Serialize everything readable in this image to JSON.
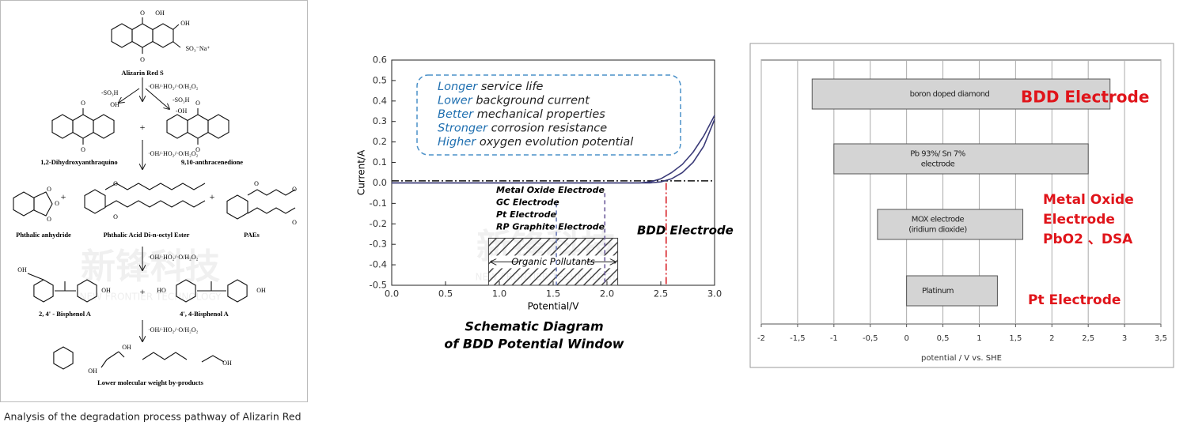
{
  "pathway": {
    "caption": "Analysis of the degradation process pathway of Alizarin Red",
    "watermark": {
      "name": "新锋科技",
      "tagline": "NEW FRONTIER TECHNOLOGY"
    },
    "steps": [
      "·OH/·HO₂/·O/H₂O₂",
      "·OH/·HO₂/·O/H₂O₂",
      "·OH/·HO₂/·O/H₂O₂",
      "·OH/·HO₂/·O/H₂O₂"
    ],
    "branch_labels": [
      "-SO₃H",
      "-SO₃H",
      "-OH"
    ],
    "compounds": [
      "Alizarin Red S",
      "1,2-Dihydroxyanthraquino",
      "9,10-anthracenedione",
      "Phthalic anhydride",
      "Phthalic Acid Di-n-octyl Ester",
      "PAEs",
      "2, 4' - Bisphenol A",
      "4', 4-Bisphenol A",
      "Lower molecular weight by-products"
    ],
    "atom_labels": [
      "O",
      "OH",
      "OH",
      "O",
      "SO₃⁻Na⁺",
      "O",
      "OH",
      "O",
      "O",
      "O",
      "O",
      "O",
      "O",
      "O",
      "O",
      "O",
      "O",
      "O",
      "OH",
      "OH",
      "HO",
      "OH",
      "OH",
      "OH",
      "OH"
    ]
  },
  "chart_data": [
    {
      "type": "line",
      "xlabel": "Potential/V",
      "ylabel": "Current/A",
      "xlim": [
        0,
        3
      ],
      "xticks": [
        {
          "value": 0,
          "label": "0.0"
        },
        0.5,
        {
          "value": 1,
          "label": "1.0"
        },
        1.5,
        {
          "value": 2,
          "label": "2.0"
        },
        2.5,
        {
          "value": 3,
          "label": "3.0"
        }
      ],
      "ylim": [
        -0.5,
        0.6
      ],
      "yticks": [
        -0.5,
        -0.4,
        -0.3,
        -0.2,
        -0.1,
        {
          "value": 0,
          "label": "0.0"
        },
        0.1,
        0.2,
        0.3,
        0.4,
        0.5,
        0.6
      ],
      "x": [
        0,
        0.5,
        1,
        1.5,
        2,
        2.3,
        2.4,
        2.5,
        2.6,
        2.7,
        2.8,
        2.9,
        3
      ],
      "series": [
        {
          "color": "#3b3b78",
          "values": [
            0,
            0,
            0,
            0,
            0,
            0,
            0.005,
            0.02,
            0.05,
            0.09,
            0.15,
            0.23,
            0.33
          ]
        },
        {
          "color": "#3b3b78",
          "values": [
            0,
            0,
            0,
            0,
            0,
            0,
            0,
            0.005,
            0.02,
            0.05,
            0.1,
            0.18,
            0.31
          ]
        }
      ],
      "baseline": 0.01,
      "reference_lines": [
        {
          "x": 1.53,
          "y_top": -0.1,
          "color": "#6a7ab8"
        },
        {
          "x": 1.98,
          "y_top": -0.05,
          "color": "#6b5a9a"
        },
        {
          "x": 2.55,
          "y_top": 0,
          "color": "#d9262c"
        }
      ],
      "hatched_region": {
        "x": [
          0.9,
          2.1
        ],
        "y": [
          -0.5,
          -0.27
        ],
        "label": "Organic Pollutants"
      },
      "electrode_labels": [
        "Metal Oxide Electrode",
        "GC Electrode",
        "Pt Electrode",
        "RP Graphite Electrode"
      ],
      "bdd_label": "BDD Electrode",
      "features": [
        {
          "highlight": "Longer",
          "text": "service life"
        },
        {
          "highlight": "Lower",
          "text": "background current"
        },
        {
          "highlight": "Better",
          "text": "mechanical properties"
        },
        {
          "highlight": "Stronger",
          "text": "corrosion resistance"
        },
        {
          "highlight": "Higher",
          "text": "oxygen evolution potential"
        }
      ],
      "caption": [
        "Schematic Diagram",
        "of BDD Potential Window"
      ]
    },
    {
      "type": "range_bar",
      "xlabel": "potential / V vs. SHE",
      "grid": true,
      "xlim": [
        -2,
        3.5
      ],
      "xticks": [
        -2,
        {
          "value": -1.5,
          "label": "-1,5"
        },
        -1,
        {
          "value": -0.5,
          "label": "-0,5"
        },
        0,
        {
          "value": 0.5,
          "label": "0,5"
        },
        1,
        {
          "value": 1.5,
          "label": "1,5"
        },
        2,
        {
          "value": 2.5,
          "label": "2,5"
        },
        3,
        {
          "value": 3.5,
          "label": "3,5"
        }
      ],
      "categories": [
        [
          "boron doped diamond"
        ],
        [
          "Pb 93%/ Sn 7%",
          "electrode"
        ],
        [
          "MOX electrode",
          "(iridium dioxide)"
        ],
        [
          "Platinum"
        ]
      ],
      "ranges": [
        [
          -1.3,
          2.8
        ],
        [
          -1,
          2.5
        ],
        [
          -0.4,
          1.6
        ],
        [
          0,
          1.25
        ]
      ],
      "color": "#d4d4d4",
      "annotations": [
        {
          "lines": [
            "BDD Electrode"
          ]
        },
        {
          "lines": [
            "Metal Oxide",
            "Electrode",
            "PbO2 、DSA"
          ]
        },
        {
          "lines": [
            "Pt Electrode"
          ]
        }
      ]
    }
  ]
}
